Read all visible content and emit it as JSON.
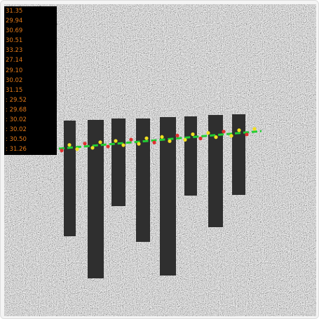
{
  "panel": {
    "lines": [
      "31.35",
      "29.94",
      "30.69",
      "30.51",
      "33.23",
      "27.14",
      "29.10",
      "30.02",
      "31.15",
      ": 29.52",
      ": 29.68",
      ": 30.02",
      ": 30.02",
      ": 30.50",
      ": 31.26"
    ]
  }
}
